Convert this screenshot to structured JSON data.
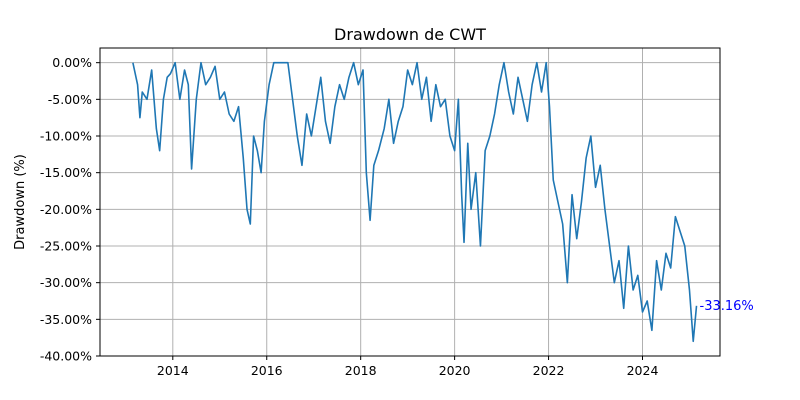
{
  "chart_data": {
    "type": "line",
    "title": "Drawdown de CWT",
    "xlabel": "",
    "ylabel": "Drawdown (%)",
    "xlim": [
      2012.45,
      2025.65
    ],
    "ylim": [
      -40.0,
      2.0
    ],
    "grid": true,
    "x_ticks": [
      2014,
      2016,
      2018,
      2020,
      2022,
      2024
    ],
    "x_tick_labels": [
      "2014",
      "2016",
      "2018",
      "2020",
      "2022",
      "2024"
    ],
    "y_ticks": [
      0,
      -5,
      -10,
      -15,
      -20,
      -25,
      -30,
      -35,
      -40
    ],
    "y_tick_labels": [
      "0.00%",
      "-5.00%",
      "-10.00%",
      "-15.00%",
      "-20.00%",
      "-25.00%",
      "-30.00%",
      "-35.00%",
      "-40.00%"
    ],
    "series": [
      {
        "color": "#1f77b4",
        "x": [
          2013.15,
          2013.25,
          2013.3,
          2013.35,
          2013.45,
          2013.55,
          2013.65,
          2013.72,
          2013.8,
          2013.88,
          2013.95,
          2014.05,
          2014.15,
          2014.25,
          2014.33,
          2014.4,
          2014.5,
          2014.6,
          2014.7,
          2014.8,
          2014.9,
          2015.0,
          2015.1,
          2015.2,
          2015.3,
          2015.4,
          2015.5,
          2015.58,
          2015.65,
          2015.72,
          2015.8,
          2015.88,
          2015.95,
          2016.05,
          2016.15,
          2016.3,
          2016.45,
          2016.55,
          2016.65,
          2016.75,
          2016.85,
          2016.95,
          2017.05,
          2017.15,
          2017.25,
          2017.35,
          2017.45,
          2017.55,
          2017.65,
          2017.75,
          2017.85,
          2017.95,
          2018.05,
          2018.12,
          2018.2,
          2018.28,
          2018.38,
          2018.5,
          2018.6,
          2018.7,
          2018.8,
          2018.9,
          2019.0,
          2019.1,
          2019.2,
          2019.3,
          2019.4,
          2019.5,
          2019.6,
          2019.7,
          2019.8,
          2019.9,
          2020.0,
          2020.08,
          2020.15,
          2020.2,
          2020.28,
          2020.35,
          2020.45,
          2020.55,
          2020.65,
          2020.75,
          2020.85,
          2020.95,
          2021.05,
          2021.15,
          2021.25,
          2021.35,
          2021.45,
          2021.55,
          2021.65,
          2021.75,
          2021.85,
          2021.95,
          2022.02,
          2022.1,
          2022.2,
          2022.3,
          2022.4,
          2022.5,
          2022.6,
          2022.7,
          2022.8,
          2022.9,
          2023.0,
          2023.1,
          2023.2,
          2023.3,
          2023.4,
          2023.5,
          2023.6,
          2023.7,
          2023.8,
          2023.9,
          2024.0,
          2024.1,
          2024.2,
          2024.3,
          2024.4,
          2024.5,
          2024.6,
          2024.7,
          2024.8,
          2024.9,
          2025.0,
          2025.08,
          2025.15
        ],
        "y": [
          0.0,
          -3.0,
          -7.5,
          -4.0,
          -5.0,
          -1.0,
          -9.0,
          -12.0,
          -5.0,
          -2.0,
          -1.5,
          0.0,
          -5.0,
          -1.0,
          -3.0,
          -14.5,
          -5.0,
          0.0,
          -3.0,
          -2.0,
          -0.5,
          -5.0,
          -4.0,
          -7.0,
          -8.0,
          -6.0,
          -13.0,
          -20.0,
          -22.0,
          -10.0,
          -12.0,
          -15.0,
          -8.0,
          -3.0,
          0.0,
          0.0,
          0.0,
          -5.0,
          -10.0,
          -14.0,
          -7.0,
          -10.0,
          -6.0,
          -2.0,
          -8.0,
          -11.0,
          -6.0,
          -3.0,
          -5.0,
          -2.0,
          0.0,
          -3.0,
          -1.0,
          -15.0,
          -21.5,
          -14.0,
          -12.0,
          -9.0,
          -5.0,
          -11.0,
          -8.0,
          -6.0,
          -1.0,
          -3.0,
          0.0,
          -5.0,
          -2.0,
          -8.0,
          -3.0,
          -6.0,
          -5.0,
          -10.0,
          -12.0,
          -5.0,
          -18.0,
          -24.5,
          -11.0,
          -20.0,
          -15.0,
          -25.0,
          -12.0,
          -10.0,
          -7.0,
          -3.0,
          0.0,
          -4.0,
          -7.0,
          -2.0,
          -5.0,
          -8.0,
          -3.0,
          0.0,
          -4.0,
          0.0,
          -6.0,
          -16.0,
          -19.0,
          -22.0,
          -30.0,
          -18.0,
          -24.0,
          -19.0,
          -13.0,
          -10.0,
          -17.0,
          -14.0,
          -20.0,
          -25.0,
          -30.0,
          -27.0,
          -33.5,
          -25.0,
          -31.0,
          -29.0,
          -34.0,
          -32.5,
          -36.5,
          -27.0,
          -31.0,
          -26.0,
          -28.0,
          -21.0,
          -23.0,
          -25.0,
          -31.0,
          -38.0,
          -33.16
        ]
      }
    ],
    "annotations": [
      {
        "text": "-33.16%",
        "x": 2025.15,
        "y": -33.16,
        "color": "#0000ff"
      }
    ]
  }
}
